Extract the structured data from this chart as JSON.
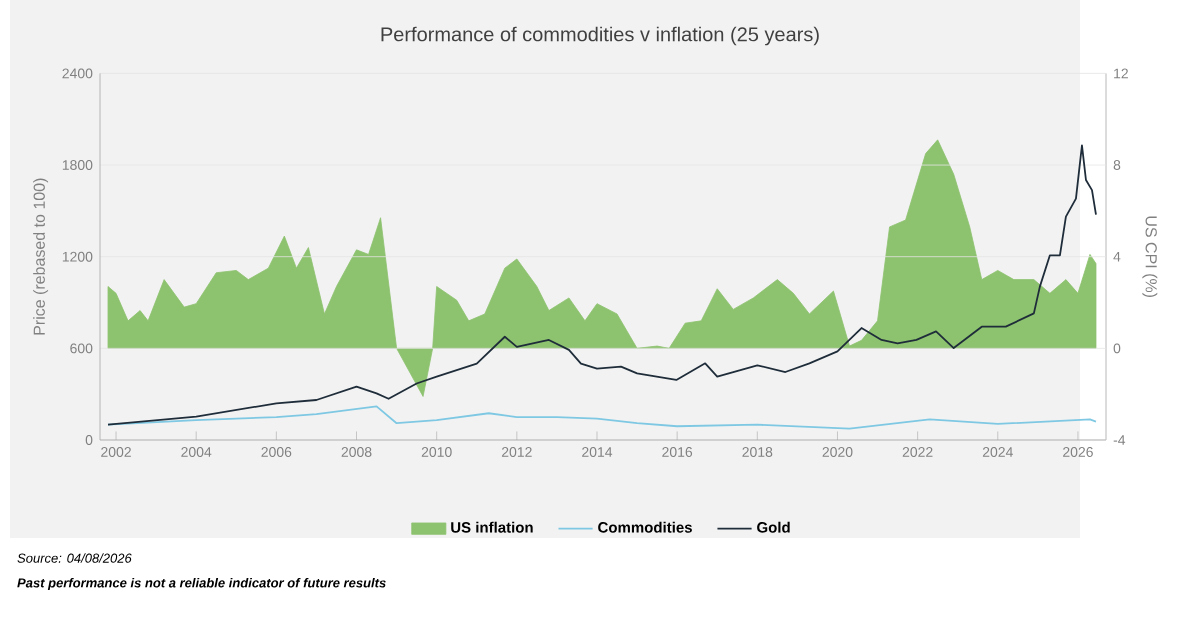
{
  "chart_data": {
    "type": "line",
    "title": "Performance of commodities v inflation (25 years)",
    "ylabel": "Price (rebased to 100)",
    "y2label": "US CPI (%)",
    "xlim": [
      2001.6,
      2026.7
    ],
    "xticks": [
      2002,
      2004,
      2006,
      2008,
      2010,
      2012,
      2014,
      2016,
      2018,
      2020,
      2022,
      2024,
      2026
    ],
    "ylim": [
      0,
      2400
    ],
    "yticks": [
      0,
      600,
      1200,
      1800,
      2400
    ],
    "y2lim": [
      -4,
      12
    ],
    "y2ticks": [
      -4,
      0,
      4,
      8,
      12
    ],
    "grid": "y",
    "legend": "bottom",
    "annotations": [
      "Source: 04/08/2026",
      "Past performance is not a reliable indicator of future results"
    ],
    "series": [
      {
        "name": "US inflation",
        "type": "area",
        "axis": "y2",
        "color": "#8dc26f",
        "x": [
          2001.8,
          2002.0,
          2002.3,
          2002.6,
          2002.8,
          2003.2,
          2003.7,
          2004.0,
          2004.5,
          2005.0,
          2005.3,
          2005.8,
          2006.2,
          2006.5,
          2006.8,
          2007.2,
          2007.5,
          2008.0,
          2008.3,
          2008.6,
          2009.0,
          2009.66,
          2009.9,
          2010.0,
          2010.5,
          2010.8,
          2011.2,
          2011.7,
          2012.0,
          2012.5,
          2012.8,
          2013.3,
          2013.7,
          2014.0,
          2014.5,
          2015.0,
          2015.5,
          2015.8,
          2016.2,
          2016.6,
          2017.0,
          2017.4,
          2017.9,
          2018.5,
          2018.9,
          2019.3,
          2019.9,
          2020.3,
          2020.6,
          2021.0,
          2021.3,
          2021.7,
          2022.2,
          2022.5,
          2022.9,
          2023.3,
          2023.6,
          2024.0,
          2024.4,
          2024.9,
          2025.3,
          2025.7,
          2026.0,
          2026.3,
          2026.45
        ],
        "values": [
          2.7,
          2.4,
          1.2,
          1.65,
          1.2,
          3.0,
          1.8,
          1.95,
          3.3,
          3.4,
          3.0,
          3.5,
          4.9,
          3.5,
          4.4,
          1.5,
          2.7,
          4.3,
          4.1,
          5.7,
          0,
          -2.1,
          0,
          2.7,
          2.1,
          1.2,
          1.5,
          3.5,
          3.9,
          2.7,
          1.65,
          2.2,
          1.2,
          1.95,
          1.5,
          0,
          0.1,
          0,
          1.1,
          1.2,
          2.6,
          1.7,
          2.2,
          3.0,
          2.4,
          1.5,
          2.5,
          0.1,
          0.35,
          1.2,
          5.3,
          5.6,
          8.5,
          9.1,
          7.6,
          5.3,
          3.0,
          3.4,
          3.0,
          3.0,
          2.4,
          3.0,
          2.4,
          4.1,
          3.7
        ]
      },
      {
        "name": "Commodities",
        "color": "#7ec8e3",
        "x": [
          2001.8,
          2004.0,
          2006.0,
          2007.0,
          2008.5,
          2009.0,
          2010.0,
          2011.3,
          2012.0,
          2013.0,
          2014.0,
          2015.0,
          2016.0,
          2018.0,
          2020.3,
          2022.3,
          2024.0,
          2026.3,
          2026.45
        ],
        "values": [
          100,
          130,
          150,
          170,
          220,
          110,
          130,
          175,
          150,
          150,
          140,
          110,
          90,
          100,
          75,
          135,
          105,
          135,
          120
        ]
      },
      {
        "name": "Gold",
        "color": "#1f2d3a",
        "x": [
          2001.8,
          2004.0,
          2006.0,
          2007.0,
          2008.0,
          2008.5,
          2008.8,
          2009.5,
          2010.0,
          2011.0,
          2011.7,
          2012.0,
          2012.8,
          2013.3,
          2013.6,
          2014.0,
          2014.6,
          2015.0,
          2015.98,
          2016.7,
          2017.0,
          2018.0,
          2018.7,
          2019.3,
          2020.0,
          2020.6,
          2021.1,
          2021.5,
          2021.97,
          2022.46,
          2022.9,
          2023.6,
          2024.2,
          2024.9,
          2025.05,
          2025.3,
          2025.55,
          2025.7,
          2025.95,
          2026.1,
          2026.2,
          2026.35,
          2026.45
        ],
        "values": [
          100,
          153,
          240,
          262,
          350,
          305,
          270,
          370,
          415,
          500,
          676,
          610,
          655,
          590,
          500,
          467,
          480,
          436,
          393,
          502,
          415,
          489,
          445,
          502,
          580,
          733,
          655,
          633,
          655,
          711,
          602,
          742,
          742,
          829,
          1004,
          1209,
          1209,
          1462,
          1580,
          1929,
          1702,
          1636,
          1475
        ]
      }
    ]
  }
}
